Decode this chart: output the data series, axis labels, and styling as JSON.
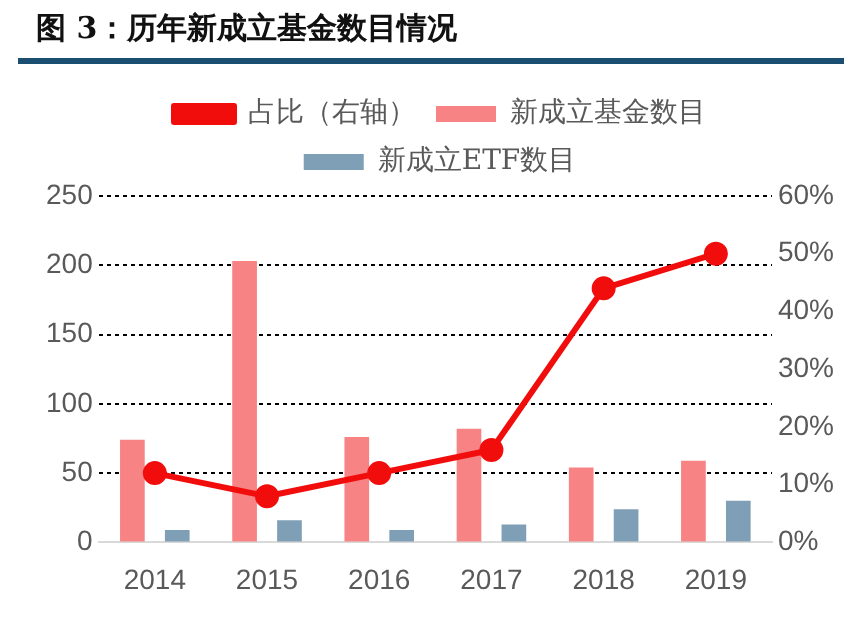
{
  "chart_data": {
    "type": "bar",
    "title": "图 3：历年新成立基金数目情况",
    "categories": [
      "2014",
      "2015",
      "2016",
      "2017",
      "2018",
      "2019"
    ],
    "series": [
      {
        "name": "新成立基金数目",
        "color": "#f78384",
        "values": [
          74,
          203,
          76,
          82,
          54,
          59
        ]
      },
      {
        "name": "新成立ETF数目",
        "color": "#7f9fb6",
        "values": [
          9,
          16,
          9,
          13,
          24,
          30
        ]
      },
      {
        "name": "占比（右轴）",
        "type": "line",
        "axis": "y2",
        "color": "#f20d0d",
        "marker": "circle",
        "values": [
          12,
          8,
          12,
          16,
          44,
          50
        ]
      }
    ],
    "ylim": [
      0,
      250
    ],
    "yticks": [
      0,
      50,
      100,
      150,
      200,
      250
    ],
    "y2lim": [
      0,
      60
    ],
    "y2ticks": [
      {
        "value": 0,
        "label": "0%"
      },
      {
        "value": 10,
        "label": "10%"
      },
      {
        "value": 20,
        "label": "20%"
      },
      {
        "value": 30,
        "label": "30%"
      },
      {
        "value": 40,
        "label": "40%"
      },
      {
        "value": 50,
        "label": "50%"
      },
      {
        "value": 60,
        "label": "60%"
      }
    ],
    "grid": "y",
    "legend": "top"
  }
}
